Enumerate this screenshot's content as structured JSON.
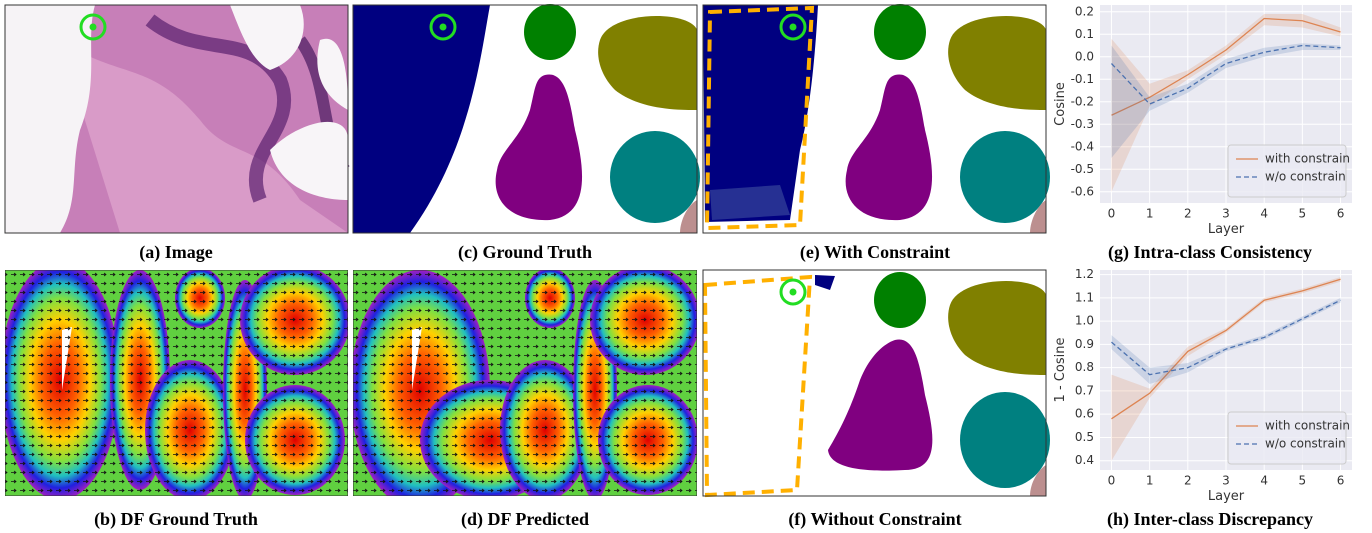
{
  "captions": [
    "(a) Image",
    "(b) DF Ground Truth",
    "(c) Ground Truth",
    "(d) DF Predicted",
    "(e) With Constraint",
    "(f) Without Constraint",
    "(g) Intra-class Consistency",
    "(h) Inter-class Discrepancy"
  ],
  "chart_data": [
    {
      "type": "line",
      "xlabel": "Layer",
      "ylabel": "Cosine",
      "x": [
        0,
        1,
        2,
        3,
        4,
        5,
        6
      ],
      "xlim": [
        -0.3,
        6.3
      ],
      "xticks": [
        0,
        1,
        2,
        3,
        4,
        5,
        6
      ],
      "ylim": [
        -0.65,
        0.23
      ],
      "yticks": [
        0.2,
        0.1,
        {
          "value": 0,
          "label": "0.0"
        },
        -0.1,
        -0.2,
        -0.3,
        -0.4,
        -0.5,
        -0.6
      ],
      "grid": true,
      "legend": "lower right",
      "series": [
        {
          "name": "with constrain",
          "color": "#dd8452",
          "dash": "solid",
          "values": [
            -0.26,
            -0.18,
            -0.08,
            0.03,
            0.17,
            0.16,
            0.11
          ],
          "lower": [
            -0.6,
            -0.22,
            -0.1,
            0.01,
            0.14,
            0.13,
            0.09
          ],
          "upper": [
            0.08,
            -0.12,
            -0.06,
            0.05,
            0.19,
            0.19,
            0.13
          ]
        },
        {
          "name": "w/o constrain",
          "color": "#4c72b0",
          "dash": "dashed",
          "values": [
            -0.03,
            -0.21,
            -0.14,
            -0.03,
            0.02,
            0.05,
            0.04
          ],
          "lower": [
            -0.45,
            -0.24,
            -0.16,
            -0.05,
            0.0,
            0.03,
            0.03
          ],
          "upper": [
            0.05,
            -0.18,
            -0.12,
            -0.01,
            0.04,
            0.06,
            0.05
          ]
        }
      ]
    },
    {
      "type": "line",
      "xlabel": "Layer",
      "ylabel": "1 - Cosine",
      "x": [
        0,
        1,
        2,
        3,
        4,
        5,
        6
      ],
      "xlim": [
        -0.3,
        6.3
      ],
      "xticks": [
        0,
        1,
        2,
        3,
        4,
        5,
        6
      ],
      "ylim": [
        0.36,
        1.22
      ],
      "yticks": [
        1.2,
        1.1,
        {
          "value": 1,
          "label": "1.0"
        },
        0.9,
        0.8,
        0.7,
        0.6,
        0.5,
        0.4
      ],
      "grid": true,
      "legend": "lower right",
      "series": [
        {
          "name": "with constrain",
          "color": "#dd8452",
          "dash": "solid",
          "values": [
            0.58,
            0.69,
            0.87,
            0.96,
            1.09,
            1.13,
            1.18
          ],
          "lower": [
            0.4,
            0.67,
            0.85,
            0.95,
            1.08,
            1.12,
            1.17
          ],
          "upper": [
            0.77,
            0.71,
            0.89,
            0.97,
            1.1,
            1.14,
            1.19
          ]
        },
        {
          "name": "w/o constrain",
          "color": "#4c72b0",
          "dash": "dashed",
          "values": [
            0.91,
            0.77,
            0.8,
            0.88,
            0.93,
            1.01,
            1.09
          ],
          "lower": [
            0.88,
            0.73,
            0.78,
            0.87,
            0.92,
            1.0,
            1.08
          ],
          "upper": [
            0.94,
            0.8,
            0.82,
            0.89,
            0.94,
            1.02,
            1.1
          ]
        }
      ]
    }
  ]
}
